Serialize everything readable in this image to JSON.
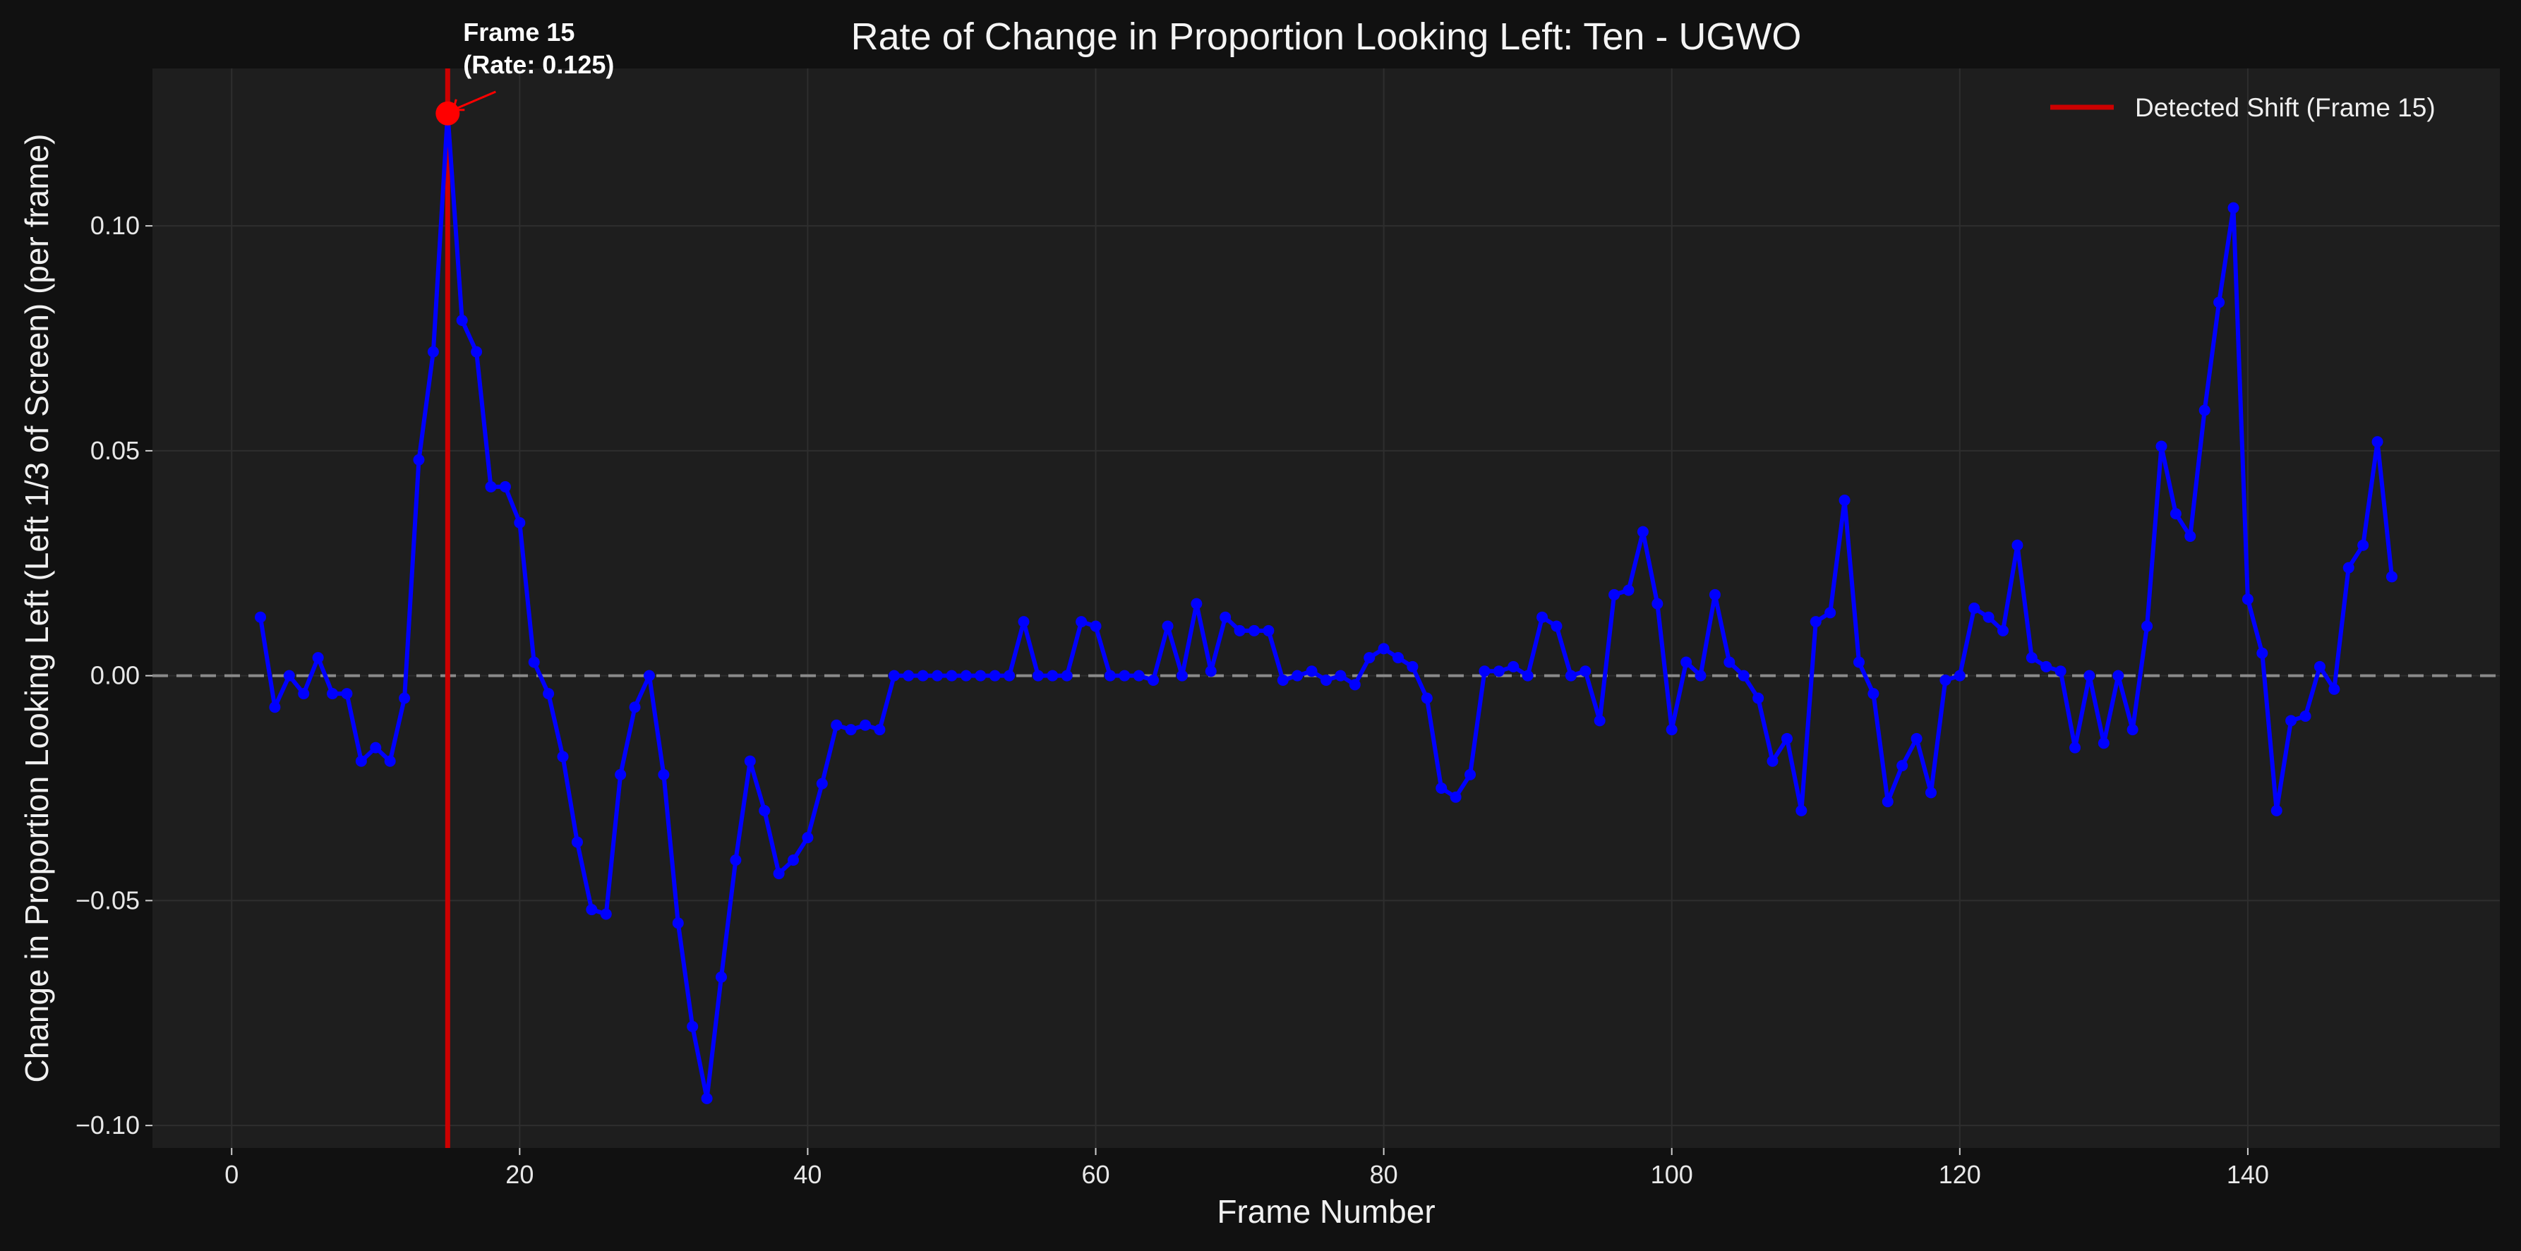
{
  "chart_data": {
    "type": "line",
    "title": "Rate of Change in Proportion Looking Left: Ten - UGWO",
    "xlabel": "Frame Number",
    "ylabel": "Change in Proportion Looking Left (Left 1/3 of Screen) (per frame)",
    "xlim": [
      -5.5,
      157.5
    ],
    "ylim": [
      -0.105,
      0.135
    ],
    "xticks": [
      0,
      20,
      40,
      60,
      80,
      100,
      120,
      140
    ],
    "xtick_labels": [
      "0",
      "20",
      "40",
      "60",
      "80",
      "100",
      "120",
      "140"
    ],
    "yticks": [
      -0.1,
      -0.05,
      0.0,
      0.05,
      0.1
    ],
    "ytick_labels": [
      "−0.10",
      "−0.05",
      "0.00",
      "0.05",
      "0.10"
    ],
    "grid": true,
    "zero_line": 0.0,
    "legend_position": "top-right",
    "legend": [
      "Detected Shift (Frame 15)"
    ],
    "shift_frame": 15,
    "annotation": {
      "x": 15,
      "y": 0.125,
      "line1": "Frame 15",
      "line2": "(Rate: 0.125)"
    },
    "series": [
      {
        "color": "#0000ff",
        "x": [
          2,
          3,
          4,
          5,
          6,
          7,
          8,
          9,
          10,
          11,
          12,
          13,
          14,
          15,
          16,
          17,
          18,
          19,
          20,
          21,
          22,
          23,
          24,
          25,
          26,
          27,
          28,
          29,
          30,
          31,
          32,
          33,
          34,
          35,
          36,
          37,
          38,
          39,
          40,
          41,
          42,
          43,
          44,
          45,
          46,
          47,
          48,
          49,
          50,
          51,
          52,
          53,
          54,
          55,
          56,
          57,
          58,
          59,
          60,
          61,
          62,
          63,
          64,
          65,
          66,
          67,
          68,
          69,
          70,
          71,
          72,
          73,
          74,
          75,
          76,
          77,
          78,
          79,
          80,
          81,
          82,
          83,
          84,
          85,
          86,
          87,
          88,
          89,
          90,
          91,
          92,
          93,
          94,
          95,
          96,
          97,
          98,
          99,
          100,
          101,
          102,
          103,
          104,
          105,
          106,
          107,
          108,
          109,
          110,
          111,
          112,
          113,
          114,
          115,
          116,
          117,
          118,
          119,
          120,
          121,
          122,
          123,
          124,
          125,
          126,
          127,
          128,
          129,
          130,
          131,
          132,
          133,
          134,
          135,
          136,
          137,
          138,
          139,
          140,
          141,
          142,
          143,
          144,
          145,
          146,
          147,
          148,
          149,
          150
        ],
        "y": [
          0.013,
          -0.007,
          0.0,
          -0.004,
          0.004,
          -0.004,
          -0.004,
          -0.019,
          -0.016,
          -0.019,
          -0.005,
          0.048,
          0.072,
          0.125,
          0.079,
          0.072,
          0.042,
          0.042,
          0.034,
          0.003,
          -0.004,
          -0.018,
          -0.037,
          -0.052,
          -0.053,
          -0.022,
          -0.007,
          0.0,
          -0.022,
          -0.055,
          -0.078,
          -0.094,
          -0.067,
          -0.041,
          -0.019,
          -0.03,
          -0.044,
          -0.041,
          -0.036,
          -0.024,
          -0.011,
          -0.012,
          -0.011,
          -0.012,
          0.0,
          0.0,
          0.0,
          0.0,
          0.0,
          0.0,
          0.0,
          0.0,
          0.0,
          0.012,
          0.0,
          0.0,
          0.0,
          0.012,
          0.011,
          0.0,
          0.0,
          0.0,
          -0.001,
          0.011,
          0.0,
          0.016,
          0.001,
          0.013,
          0.01,
          0.01,
          0.01,
          -0.001,
          0.0,
          0.001,
          -0.001,
          0.0,
          -0.002,
          0.004,
          0.006,
          0.004,
          0.002,
          -0.005,
          -0.025,
          -0.027,
          -0.022,
          0.001,
          0.001,
          0.002,
          0.0,
          0.013,
          0.011,
          0.0,
          0.001,
          -0.01,
          0.018,
          0.019,
          0.032,
          0.016,
          -0.012,
          0.003,
          0.0,
          0.018,
          0.003,
          0.0,
          -0.005,
          -0.019,
          -0.014,
          -0.03,
          0.012,
          0.014,
          0.039,
          0.003,
          -0.004,
          -0.028,
          -0.02,
          -0.014,
          -0.026,
          -0.001,
          0.0,
          0.015,
          0.013,
          0.01,
          0.029,
          0.004,
          0.002,
          0.001,
          -0.016,
          0.0,
          -0.015,
          0.0,
          -0.012,
          0.011,
          0.051,
          0.036,
          0.031,
          0.059,
          0.083,
          0.104,
          0.017,
          0.005,
          -0.03,
          -0.01,
          -0.009,
          0.002,
          -0.003,
          0.024,
          0.029,
          0.052,
          0.022
        ]
      }
    ],
    "colors": {
      "background": "#111111",
      "plot_background": "#1e1e1e",
      "grid": "#2e2e2e",
      "line": "#0000ff",
      "shift_line": "#cc0000",
      "highlight_point": "#ff0000",
      "zero_line": "#8a8a8a"
    }
  }
}
